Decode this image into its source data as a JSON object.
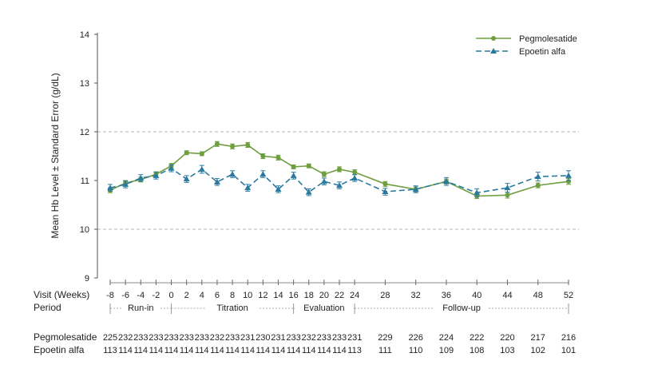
{
  "chart_data": {
    "type": "line",
    "ylabel": "Mean Hb Level ± Standard Error (g/dL)",
    "ylim": [
      9,
      14
    ],
    "yticks": [
      "9",
      "10",
      "11",
      "12",
      "13",
      "14"
    ],
    "dashed_grid_at": [
      10,
      12
    ],
    "visit_label": "Visit (Weeks)",
    "x": [
      -8,
      -6,
      -4,
      -2,
      0,
      2,
      4,
      6,
      8,
      10,
      12,
      14,
      16,
      18,
      20,
      22,
      24,
      28,
      32,
      36,
      40,
      44,
      48,
      52
    ],
    "x_tick_labels": [
      "-8",
      "-6",
      "-4",
      "-2",
      "0",
      "2",
      "4",
      "6",
      "8",
      "10",
      "12",
      "14",
      "16",
      "18",
      "20",
      "22",
      "24",
      "28",
      "32",
      "36",
      "40",
      "44",
      "48",
      "52"
    ],
    "legend_position": "top-right",
    "series": [
      {
        "name": "Pegmolesatide",
        "color": "#6e9e3e",
        "marker": "circle",
        "line_style": "solid",
        "values": [
          10.8,
          10.95,
          11.02,
          11.13,
          11.3,
          11.57,
          11.55,
          11.75,
          11.7,
          11.73,
          11.5,
          11.47,
          11.28,
          11.3,
          11.13,
          11.23,
          11.17,
          10.93,
          10.82,
          10.98,
          10.68,
          10.7,
          10.9,
          10.98
        ],
        "errors": [
          0.05,
          0.05,
          0.05,
          0.05,
          0.05,
          0.04,
          0.04,
          0.05,
          0.05,
          0.05,
          0.05,
          0.05,
          0.04,
          0.04,
          0.05,
          0.05,
          0.05,
          0.05,
          0.05,
          0.05,
          0.05,
          0.06,
          0.05,
          0.06
        ]
      },
      {
        "name": "Epoetin alfa",
        "color": "#2b7a9e",
        "marker": "triangle",
        "line_style": "dashed",
        "values": [
          10.85,
          10.92,
          11.05,
          11.1,
          11.25,
          11.03,
          11.23,
          10.97,
          11.13,
          10.85,
          11.13,
          10.82,
          11.1,
          10.76,
          10.98,
          10.9,
          11.05,
          10.77,
          10.82,
          10.98,
          10.75,
          10.85,
          11.08,
          11.1
        ],
        "errors": [
          0.07,
          0.07,
          0.07,
          0.07,
          0.07,
          0.07,
          0.08,
          0.07,
          0.07,
          0.07,
          0.07,
          0.07,
          0.07,
          0.07,
          0.07,
          0.07,
          0.07,
          0.07,
          0.07,
          0.08,
          0.08,
          0.09,
          0.09,
          0.1
        ]
      }
    ],
    "period_label": "Period",
    "periods": [
      {
        "name": "Run-in",
        "start": -8,
        "end": 0
      },
      {
        "name": "Titration",
        "start": 0,
        "end": 16
      },
      {
        "name": "Evaluation",
        "start": 16,
        "end": 24
      },
      {
        "name": "Follow-up",
        "start": 24,
        "end": 52
      }
    ],
    "n_at_risk": [
      {
        "name": "Pegmolesatide",
        "values": [
          "225",
          "232",
          "233",
          "233",
          "233",
          "233",
          "233",
          "232",
          "233",
          "231",
          "230",
          "231",
          "233",
          "232",
          "233",
          "233",
          "231",
          "229",
          "226",
          "224",
          "222",
          "220",
          "217",
          "216"
        ]
      },
      {
        "name": "Epoetin alfa",
        "values": [
          "113",
          "114",
          "114",
          "114",
          "114",
          "114",
          "114",
          "114",
          "114",
          "114",
          "114",
          "114",
          "114",
          "114",
          "114",
          "114",
          "113",
          "111",
          "110",
          "109",
          "108",
          "103",
          "102",
          "101"
        ]
      }
    ]
  }
}
